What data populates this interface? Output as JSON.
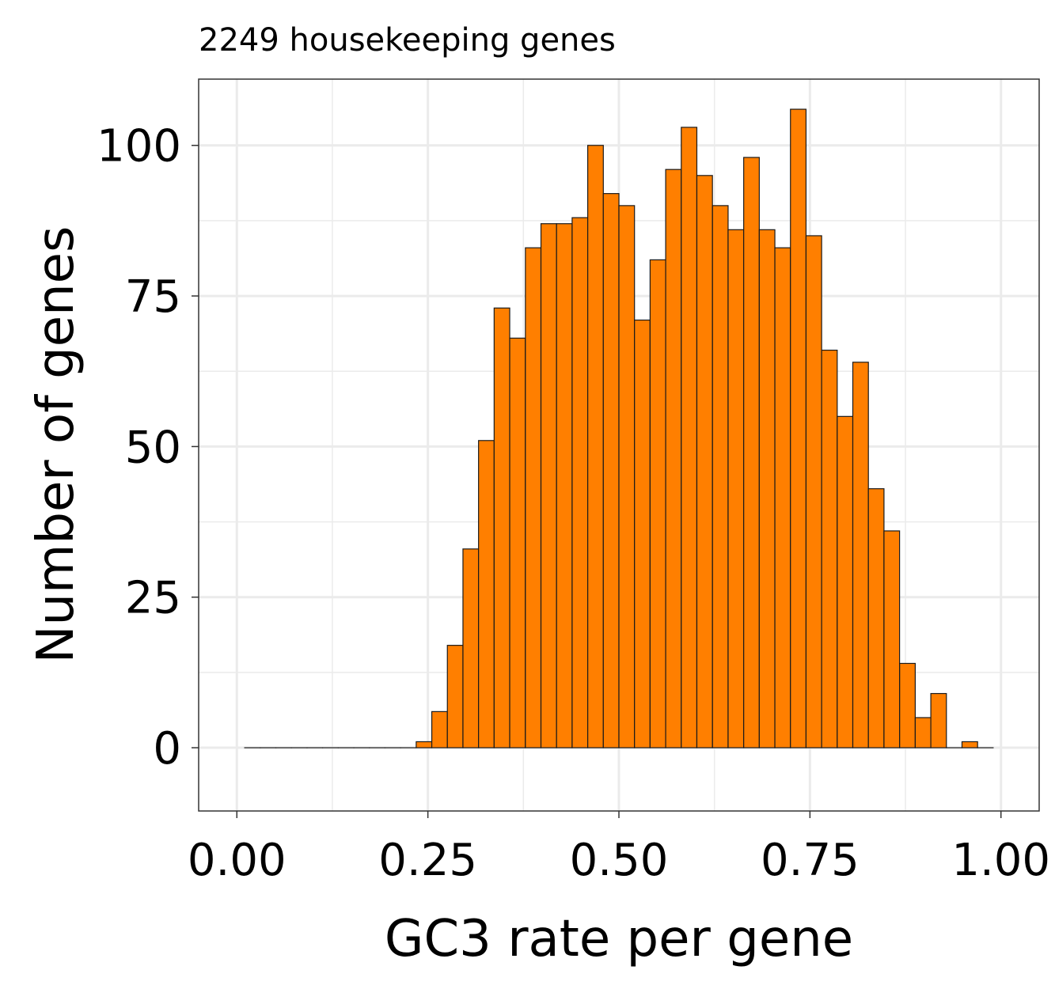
{
  "chart_data": {
    "type": "bar",
    "title": "2249 housekeeping genes",
    "xlabel": "GC3 rate per gene",
    "ylabel": "Number of genes",
    "xlim": [
      -0.05,
      1.05
    ],
    "ylim": [
      -10.5,
      111
    ],
    "x_ticks": [
      "0.00",
      "0.25",
      "0.50",
      "0.75",
      "1.00"
    ],
    "x_tick_values": [
      0,
      0.25,
      0.5,
      0.75,
      1.0
    ],
    "y_ticks": [
      "0",
      "25",
      "50",
      "75",
      "100"
    ],
    "y_tick_values": [
      0,
      25,
      50,
      75,
      100
    ],
    "bin_width": 0.0204,
    "bin_centers": [
      0.0204,
      0.0408,
      0.0612,
      0.0816,
      0.102,
      0.1224,
      0.1429,
      0.1633,
      0.1837,
      0.2041,
      0.2245,
      0.2449,
      0.2653,
      0.2857,
      0.3061,
      0.3265,
      0.3469,
      0.3673,
      0.3878,
      0.4082,
      0.4286,
      0.449,
      0.4694,
      0.4898,
      0.5102,
      0.5306,
      0.551,
      0.5714,
      0.5918,
      0.6122,
      0.6327,
      0.6531,
      0.6735,
      0.6939,
      0.7143,
      0.7347,
      0.7551,
      0.7755,
      0.7959,
      0.8163,
      0.8367,
      0.8571,
      0.8776,
      0.898,
      0.9184,
      0.9388,
      0.9592,
      0.9796
    ],
    "values": [
      0,
      0,
      0,
      0,
      0,
      0,
      0,
      0,
      0,
      0,
      0,
      1,
      6,
      17,
      33,
      51,
      73,
      68,
      83,
      87,
      87,
      88,
      100,
      92,
      90,
      71,
      81,
      96,
      103,
      95,
      90,
      86,
      98,
      86,
      83,
      106,
      85,
      66,
      55,
      64,
      43,
      36,
      14,
      5,
      9,
      0,
      1,
      0
    ],
    "bar_color": "#FF7F00",
    "grid": true
  }
}
